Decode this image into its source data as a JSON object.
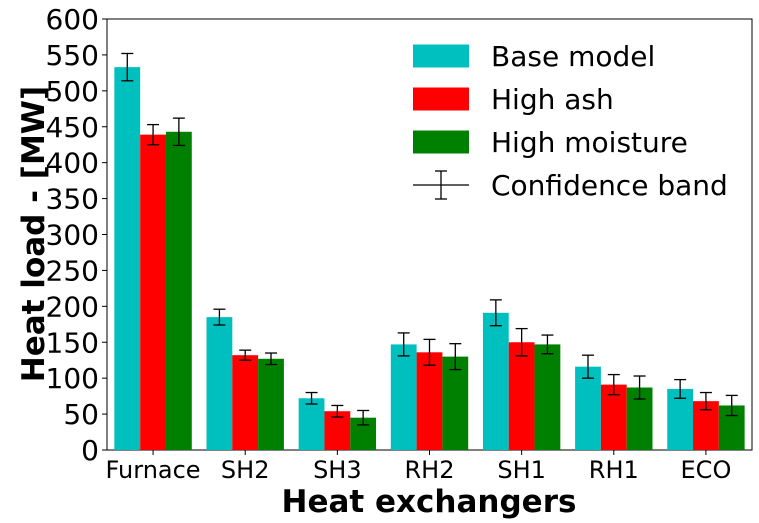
{
  "chart_data": {
    "type": "bar",
    "title": "",
    "xlabel": "Heat exchangers",
    "ylabel": "Heat load - [MW]",
    "ylim": [
      0,
      600
    ],
    "yticks": [
      0,
      50,
      100,
      150,
      200,
      250,
      300,
      350,
      400,
      450,
      500,
      550,
      600
    ],
    "categories": [
      "Furnace",
      "SH2",
      "SH3",
      "RH2",
      "SH1",
      "RH1",
      "ECO"
    ],
    "series": [
      {
        "name": "Base model",
        "color": "#00bfbf",
        "values": [
          533,
          185,
          72,
          147,
          191,
          116,
          85
        ],
        "errors": [
          19,
          11,
          8,
          16,
          18,
          16,
          13
        ]
      },
      {
        "name": "High ash",
        "color": "#ff0000",
        "values": [
          439,
          132,
          54,
          136,
          150,
          91,
          68
        ],
        "errors": [
          14,
          7,
          8,
          18,
          19,
          14,
          12
        ]
      },
      {
        "name": "High moisture",
        "color": "#008000",
        "values": [
          443,
          127,
          45,
          130,
          147,
          87,
          62
        ],
        "errors": [
          19,
          8,
          10,
          18,
          13,
          16,
          14
        ]
      }
    ],
    "error_bar_legend": "Confidence band",
    "legend_position": "top-right",
    "grid": false
  }
}
